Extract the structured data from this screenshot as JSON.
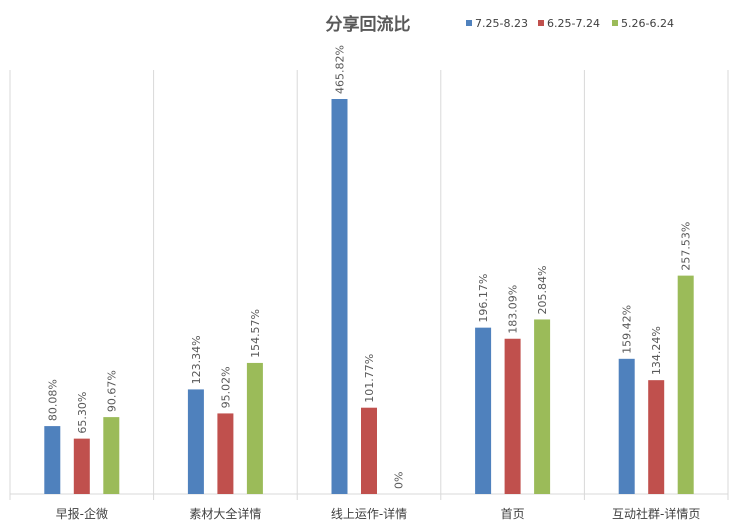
{
  "chart_data": {
    "type": "bar",
    "title": "分享回流比",
    "xlabel": "",
    "ylabel": "",
    "categories": [
      "早报-企微",
      "素材大全详情",
      "线上运作-详情",
      "首页",
      "互动社群-详情页"
    ],
    "series": [
      {
        "name": "7.25-8.23",
        "color": "#4F81BD",
        "values": [
          80.08,
          123.34,
          465.82,
          196.17,
          159.42
        ],
        "labels": [
          "80.08%",
          "123.34%",
          "465.82%",
          "196.17%",
          "159.42%"
        ]
      },
      {
        "name": "6.25-7.24",
        "color": "#C0504D",
        "values": [
          65.3,
          95.02,
          101.77,
          183.09,
          134.24
        ],
        "labels": [
          "65.30%",
          "95.02%",
          "101.77%",
          "183.09%",
          "134.24%"
        ]
      },
      {
        "name": "5.26-6.24",
        "color": "#9BBB59",
        "values": [
          90.67,
          154.57,
          0,
          205.84,
          257.53
        ],
        "labels": [
          "90.67%",
          "154.57%",
          "0%",
          "205.84%",
          "257.53%"
        ]
      }
    ],
    "ylim": [
      0,
      465.82
    ],
    "grid": "vertical category separators",
    "legend": "top-right"
  }
}
